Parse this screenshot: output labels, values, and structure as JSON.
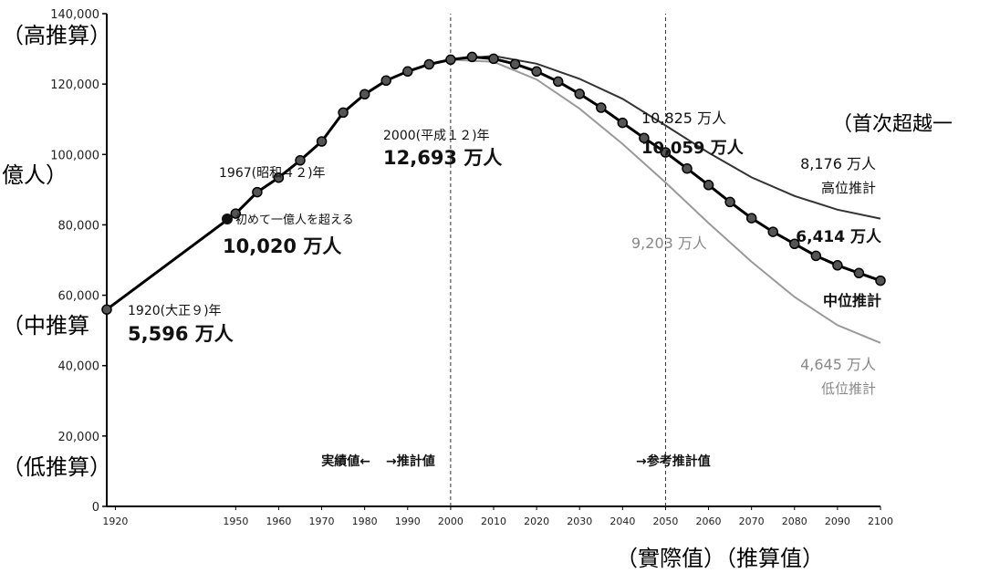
{
  "chart_data": {
    "type": "line",
    "title": "",
    "xlabel": "",
    "ylabel": "",
    "xlim": [
      1920,
      2100
    ],
    "ylim": [
      0,
      140000
    ],
    "y_ticks": [
      "0",
      "20,000",
      "40,000",
      "60,000",
      "80,000",
      "100,000",
      "120,000",
      "140,000"
    ],
    "x_ticks": [
      "1920",
      "1950",
      "1960",
      "1970",
      "1980",
      "1990",
      "2000",
      "2010",
      "2020",
      "2030",
      "2040",
      "2050",
      "2060",
      "2070",
      "2080",
      "2090",
      "2100"
    ],
    "x_tick_values": [
      1922,
      1950,
      1960,
      1970,
      1980,
      1990,
      2000,
      2010,
      2020,
      2030,
      2040,
      2050,
      2060,
      2070,
      2080,
      2090,
      2100
    ],
    "grid": false,
    "vertical_markers": [
      2000,
      2050
    ],
    "series": [
      {
        "name": "中位推計",
        "style": "line-markers",
        "color": "#000000",
        "x": [
          1920,
          1950,
          1955,
          1960,
          1965,
          1970,
          1975,
          1980,
          1985,
          1990,
          1995,
          2000,
          2005,
          2010,
          2015,
          2020,
          2025,
          2030,
          2035,
          2040,
          2045,
          2050,
          2055,
          2060,
          2065,
          2070,
          2075,
          2080,
          2085,
          2090,
          2095,
          2100
        ],
        "values": [
          55960,
          83200,
          89300,
          93400,
          98300,
          103700,
          111900,
          117100,
          121000,
          123600,
          125600,
          126930,
          127700,
          127200,
          125700,
          123600,
          120700,
          117200,
          113300,
          109000,
          104700,
          100590,
          96000,
          91300,
          86500,
          81900,
          78000,
          74600,
          71200,
          68500,
          66300,
          64140
        ]
      },
      {
        "name": "高位推計",
        "style": "line",
        "color": "#333333",
        "x": [
          2000,
          2010,
          2020,
          2030,
          2040,
          2050,
          2060,
          2070,
          2080,
          2090,
          2100
        ],
        "values": [
          126930,
          128000,
          125800,
          121500,
          115800,
          108250,
          100500,
          93500,
          88200,
          84300,
          81760
        ]
      },
      {
        "name": "低位推計",
        "style": "line",
        "color": "#999999",
        "x": [
          2000,
          2010,
          2020,
          2030,
          2040,
          2050,
          2060,
          2070,
          2080,
          2090,
          2100
        ],
        "values": [
          126930,
          126300,
          121300,
          113000,
          103000,
          92030,
          80500,
          69500,
          59500,
          51500,
          46450
        ]
      }
    ],
    "annotations": {
      "y1920": "1920(大正９)年",
      "v1920": "5,596 万人",
      "y1967": "1967(昭和４２)年",
      "note1967": "初めて一億人を超える",
      "v1967": "10,020 万人",
      "y2000": "2000(平成１２)年",
      "v2000": "12,693 万人",
      "high2050": "10,825 万人",
      "mid2050": "10,059 万人",
      "low2050": "9,203 万人",
      "high2100": "8,176 万人",
      "high_label": "高位推計",
      "mid2100": "6,414 万人",
      "mid_label": "中位推計",
      "low2100": "4,645 万人",
      "low_label": "低位推計",
      "actual": "実績値←",
      "estimate": "→推計値",
      "reference": "→参考推計值"
    },
    "overlays": {
      "high": "（高推算）",
      "billion": "億人）",
      "mid": "（中推算",
      "low": "（低推算）",
      "first_exceed": "（首次超越一",
      "actual_value": "（實際值）（推算值）"
    }
  }
}
